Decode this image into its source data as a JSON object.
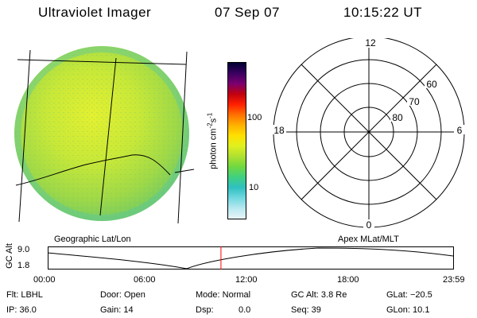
{
  "header": {
    "instrument": "Ultraviolet Imager",
    "date": "07 Sep 07",
    "time": "10:15:22 UT"
  },
  "colorbar": {
    "unit_label": "photon cm",
    "unit_exp1": "-2",
    "unit_mid": "s",
    "unit_exp2": "-1",
    "ticks": [
      "100",
      "10"
    ],
    "stops": [
      "#000033",
      "#3a0060",
      "#7a0070",
      "#c00010",
      "#ff2000",
      "#ff7000",
      "#ffb000",
      "#ffe000",
      "#e0f020",
      "#b0e030",
      "#70d840",
      "#40d080",
      "#30c0c0",
      "#70d8e0",
      "#b8e8f0",
      "#e8f4f8"
    ]
  },
  "polar": {
    "mlt_labels": {
      "top": "12",
      "bottom": "0",
      "left": "18",
      "right": "6"
    },
    "lat_labels": [
      "60",
      "70",
      "80"
    ]
  },
  "captions": {
    "left": "Geographic Lat/Lon",
    "right": "Apex MLat/MLT"
  },
  "altitude_plot": {
    "axis_title": "GC Alt",
    "ytick_top": "9.0",
    "ytick_bottom": "1.8",
    "xticks": [
      "00:00",
      "06:00",
      "12:00",
      "18:00",
      "23:59"
    ],
    "marker_time_hours": 10.256,
    "line_color": "#ff0000"
  },
  "footer": {
    "filter": "Flt: LBHL",
    "ip": "IP: 36.0",
    "door": "Door: Open",
    "gain": "Gain: 14",
    "mode": "Mode: Normal",
    "dsp_label": "Dsp:",
    "dsp_value": "0.0",
    "gc_alt": "GC Alt: 3.8 Re",
    "seq": "Seq: 39",
    "glat": "GLat: −20.5",
    "glon": "GLon: 10.1"
  }
}
